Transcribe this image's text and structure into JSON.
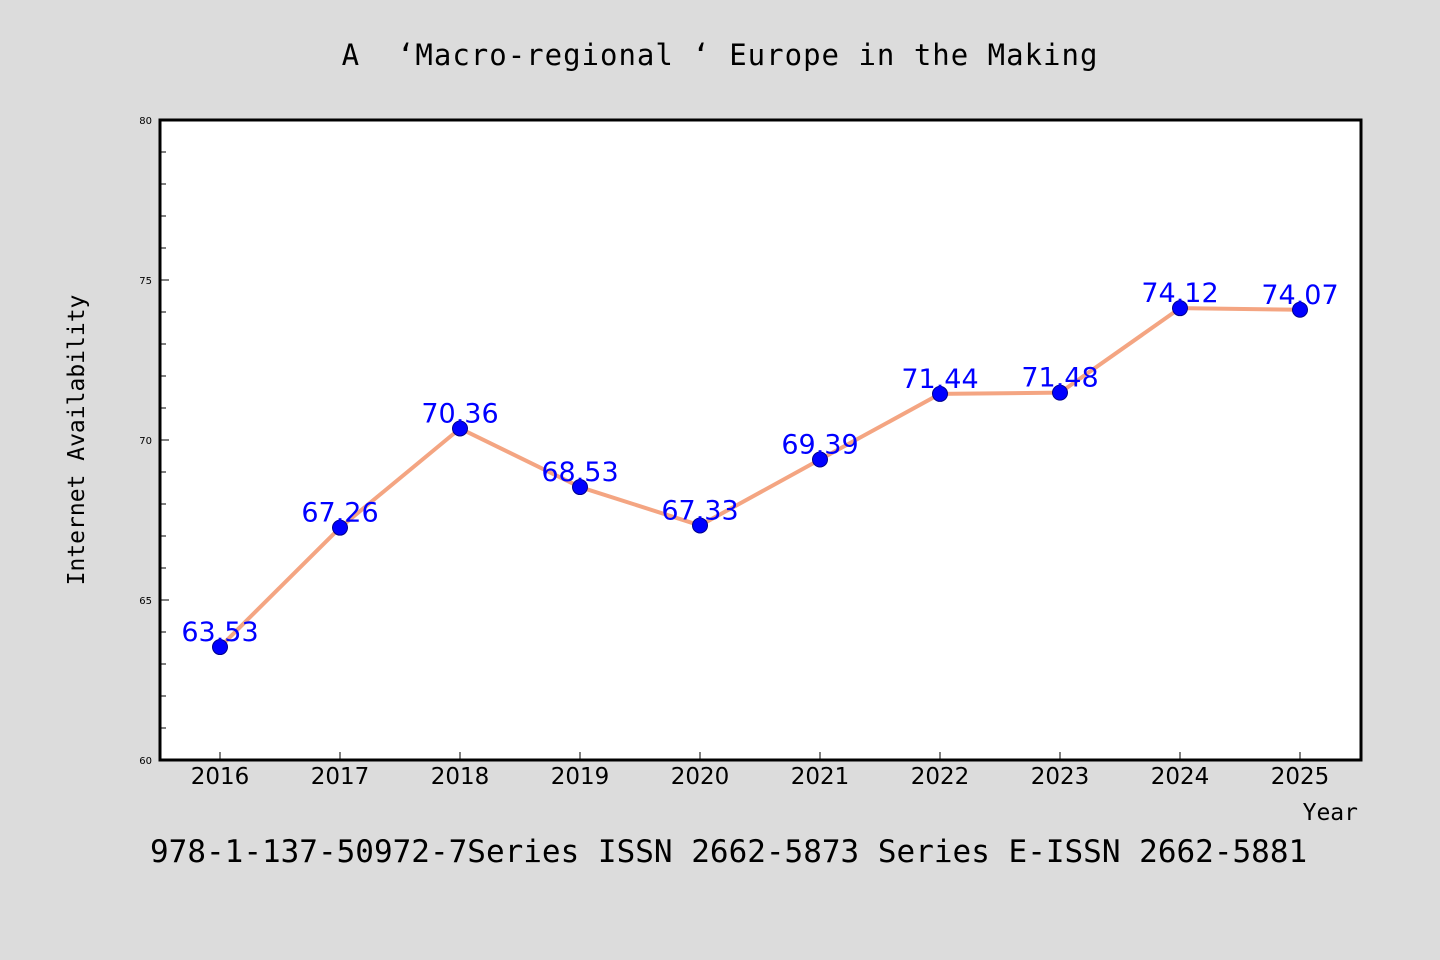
{
  "colors": {
    "background": "#dcdcdc",
    "plot_background": "#ffffff",
    "line": "#f4a582",
    "marker": "#0000ff",
    "data_label": "#0000ff"
  },
  "chart_data": {
    "type": "line",
    "title": "A  ‘Macro-regional ‘ Europe in the Making",
    "xlabel": "Year",
    "ylabel": "Internet Availability",
    "categories": [
      "2016",
      "2017",
      "2018",
      "2019",
      "2020",
      "2021",
      "2022",
      "2023",
      "2024",
      "2025"
    ],
    "series": [
      {
        "values": [
          63.53,
          67.26,
          70.36,
          68.53,
          67.33,
          69.39,
          71.44,
          71.48,
          74.12,
          74.07
        ],
        "labels": [
          "63.53",
          "67.26",
          "70.36",
          "68.53",
          "67.33",
          "69.39",
          "71.44",
          "71.48",
          "74.12",
          "74.07"
        ]
      }
    ],
    "ylim": [
      60,
      80
    ],
    "yticks": [
      "60",
      "65",
      "70",
      "75",
      "80"
    ],
    "grid": false,
    "legend": "none"
  },
  "footer": {
    "text": "978-1-137-50972-7Series ISSN 2662-5873 Series E-ISSN 2662-5881"
  }
}
